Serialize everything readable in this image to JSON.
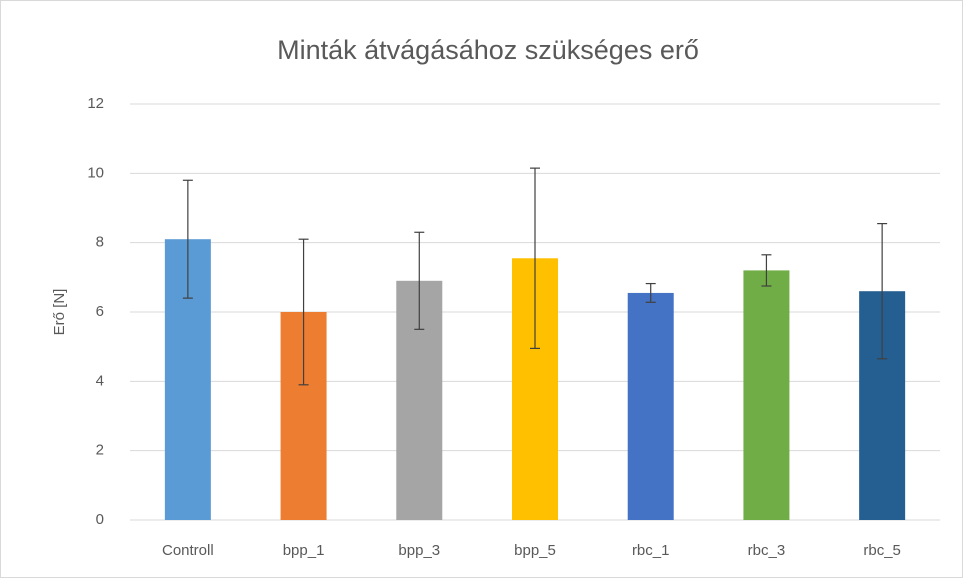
{
  "chart_data": {
    "type": "bar",
    "title": "Minták átvágásához szükséges erő",
    "y_label": "Erő [N]",
    "categories": [
      "Controll",
      "bpp_1",
      "bpp_3",
      "bpp_5",
      "rbc_1",
      "rbc_3",
      "rbc_5"
    ],
    "values": [
      8.1,
      6.0,
      6.9,
      7.55,
      6.55,
      7.2,
      6.6
    ],
    "errors": [
      1.7,
      2.1,
      1.4,
      2.6,
      0.27,
      0.45,
      1.95
    ],
    "colors": [
      "#5b9bd5",
      "#ed7d31",
      "#a5a5a5",
      "#ffc000",
      "#4472c4",
      "#70ad47",
      "#255e91"
    ],
    "ylim": [
      0,
      12
    ],
    "yticks": [
      0,
      2,
      4,
      6,
      8,
      10,
      12
    ],
    "grid": true
  }
}
